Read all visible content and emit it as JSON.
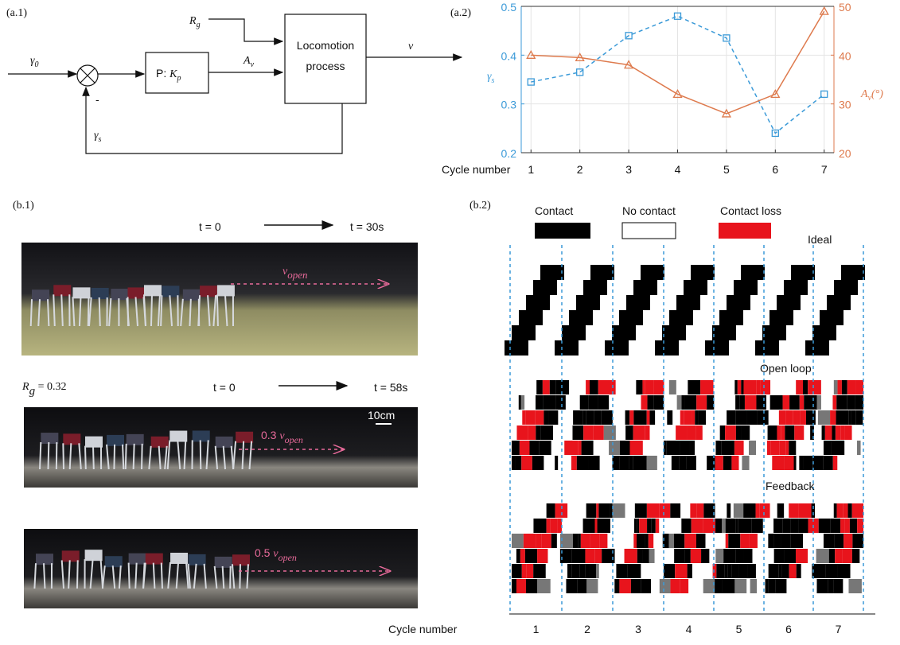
{
  "panel_labels": [
    "(a.1)",
    "(a.2)",
    "(b.1)",
    "(b.2)"
  ],
  "diagram": {
    "input": {
      "symbol": "γ",
      "subscript": "0"
    },
    "minus": "-",
    "controller": {
      "text": "P: ",
      "symbol": "K",
      "subscript": "p"
    },
    "amplitude": {
      "symbol": "A",
      "subscript": "v"
    },
    "ratio": {
      "symbol": "R",
      "subscript": "g"
    },
    "process": [
      "Locomotion",
      "process"
    ],
    "output": "v",
    "feedback": {
      "symbol": "γ",
      "subscript": "s"
    }
  },
  "chart_data": {
    "type": "line",
    "xlabel": "Cycle number",
    "ylabel": {
      "symbol": "γ",
      "subscript": "s"
    },
    "y2label": {
      "symbol": "A",
      "subscript": "v",
      "suffix": "(°)"
    },
    "x": [
      1,
      2,
      3,
      4,
      5,
      6,
      7
    ],
    "xlim": [
      0.8,
      7.2
    ],
    "xticks": [
      1,
      2,
      3,
      4,
      5,
      6,
      7
    ],
    "ylim": [
      0.2,
      0.5
    ],
    "yticks": [
      0.2,
      0.3,
      0.4,
      0.5
    ],
    "y2lim": [
      20,
      50
    ],
    "y2ticks": [
      20,
      30,
      40,
      50
    ],
    "series": [
      {
        "name": "γs",
        "color": "#3b9ad8",
        "line_style": "dashed",
        "marker": "square",
        "values": [
          0.345,
          0.365,
          0.44,
          0.48,
          0.435,
          0.24,
          0.32
        ]
      },
      {
        "name": "Av",
        "color": "#de7a4d",
        "line_style": "solid",
        "marker": "triangle",
        "axis": "y2",
        "values": [
          40,
          39.5,
          38,
          32,
          28,
          32,
          49
        ]
      }
    ]
  },
  "photos": {
    "row1": {
      "t_start": "t = 0",
      "t_end": "t = 30s"
    },
    "label1": {
      "symbol": "v",
      "subscript": "open"
    },
    "ratio": {
      "symbol": "R",
      "subscript": "g",
      "text": " = 0.32"
    },
    "row2": {
      "t_start": "t = 0",
      "t_end": "t = 58s"
    },
    "scale": "10cm",
    "label2": {
      "prefix": "0.3 ",
      "symbol": "v",
      "subscript": "open"
    },
    "label3": {
      "prefix": "0.5 ",
      "symbol": "v",
      "subscript": "open"
    }
  },
  "gait": {
    "legend": [
      "Contact",
      "No contact",
      "Contact loss"
    ],
    "sections": [
      "Ideal",
      "Open loop",
      "Feedback"
    ],
    "xlabel": "Cycle number",
    "cycles": [
      1,
      2,
      3,
      4,
      5,
      6,
      7
    ]
  }
}
